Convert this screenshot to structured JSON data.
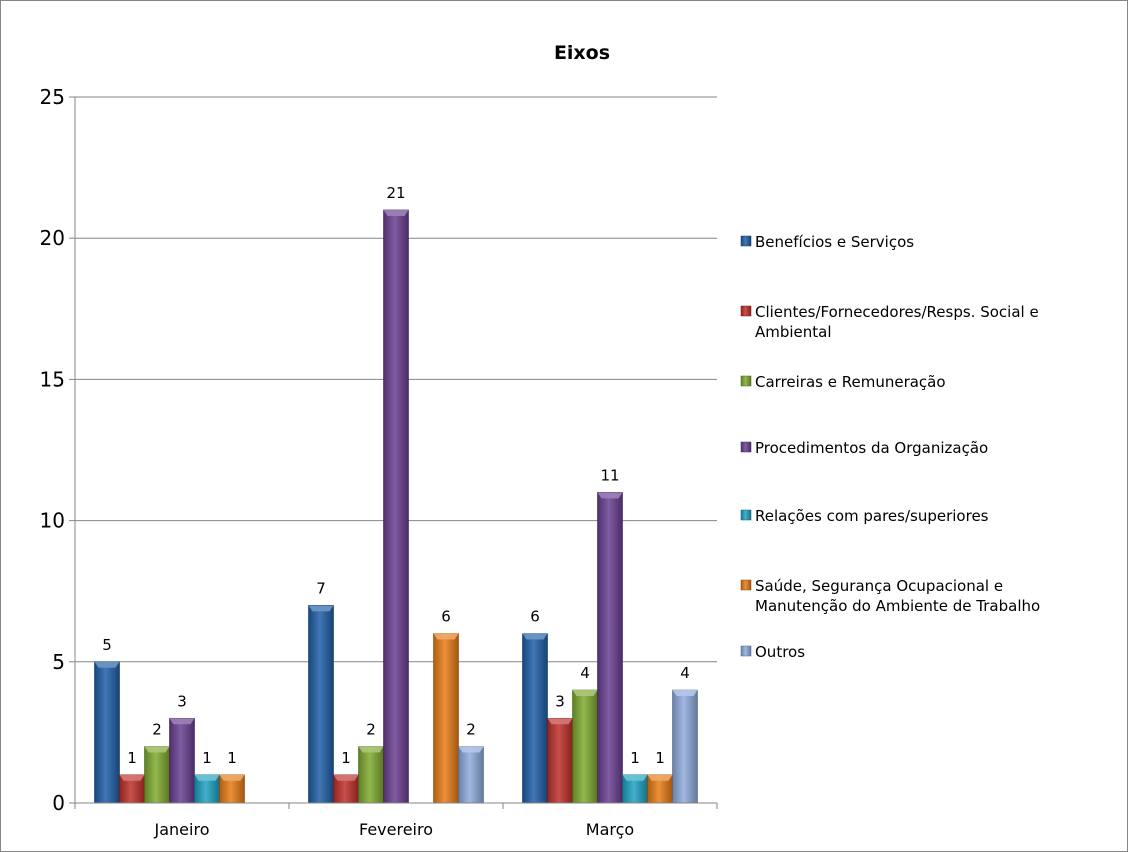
{
  "chart_data": {
    "type": "bar",
    "title": "Eixos",
    "xlabel": "",
    "ylabel": "",
    "categories": [
      "Janeiro",
      "Fevereiro",
      "Março"
    ],
    "ylim": [
      0,
      25
    ],
    "yticks": [
      0,
      5,
      10,
      15,
      20,
      25
    ],
    "grid": true,
    "legend_position": "right",
    "series": [
      {
        "name": "Benefícios e Serviços",
        "color": "#1f5fa8",
        "values": [
          5,
          7,
          6
        ]
      },
      {
        "name": "Clientes/Fornecedores/Resps. Social e Ambiental",
        "color": "#c0302a",
        "values": [
          1,
          1,
          3
        ]
      },
      {
        "name": "Carreiras e Remuneração",
        "color": "#7faa2f",
        "values": [
          2,
          2,
          4
        ]
      },
      {
        "name": "Procedimentos da Organização",
        "color": "#6a3f92",
        "values": [
          3,
          21,
          11
        ]
      },
      {
        "name": "Relações com pares/superiores",
        "color": "#1fa2c2",
        "values": [
          1,
          null,
          1
        ]
      },
      {
        "name": "Saúde, Segurança Ocupacional e Manutenção do Ambiente de Trabalho",
        "color": "#e87c15",
        "values": [
          1,
          6,
          1
        ]
      },
      {
        "name": "Outros",
        "color": "#8fabdd",
        "values": [
          null,
          2,
          4
        ]
      }
    ]
  }
}
